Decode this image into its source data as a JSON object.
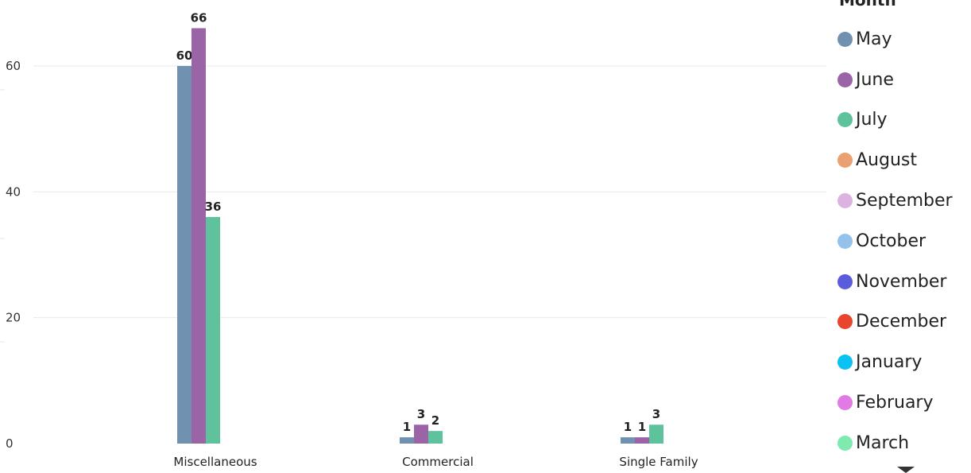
{
  "chart_data": {
    "type": "bar",
    "categories": [
      "Miscellaneous",
      "Commercial",
      "Single Family"
    ],
    "series": [
      {
        "name": "May",
        "color": "#7092b0",
        "values": [
          60,
          1,
          1
        ]
      },
      {
        "name": "June",
        "color": "#9b64a6",
        "values": [
          66,
          3,
          1
        ]
      },
      {
        "name": "July",
        "color": "#5ec29d",
        "values": [
          36,
          2,
          3
        ]
      }
    ],
    "yticks": [
      0,
      20,
      40,
      60
    ],
    "ylim": [
      0,
      70
    ],
    "grid": true,
    "legend_position": "right",
    "title": "",
    "xlabel": "",
    "ylabel": ""
  },
  "legend": {
    "title": "Month",
    "items": [
      {
        "label": "May",
        "color": "#7092b0"
      },
      {
        "label": "June",
        "color": "#9b64a6"
      },
      {
        "label": "July",
        "color": "#5ec29d"
      },
      {
        "label": "August",
        "color": "#eaa070"
      },
      {
        "label": "September",
        "color": "#dcb3e0"
      },
      {
        "label": "October",
        "color": "#95c1ed"
      },
      {
        "label": "November",
        "color": "#5b5bde"
      },
      {
        "label": "December",
        "color": "#e8452c"
      },
      {
        "label": "January",
        "color": "#0bc2f2"
      },
      {
        "label": "February",
        "color": "#e27ae4"
      },
      {
        "label": "March",
        "color": "#7eeab0"
      }
    ],
    "scroll_icon": "triangle-down-icon"
  }
}
